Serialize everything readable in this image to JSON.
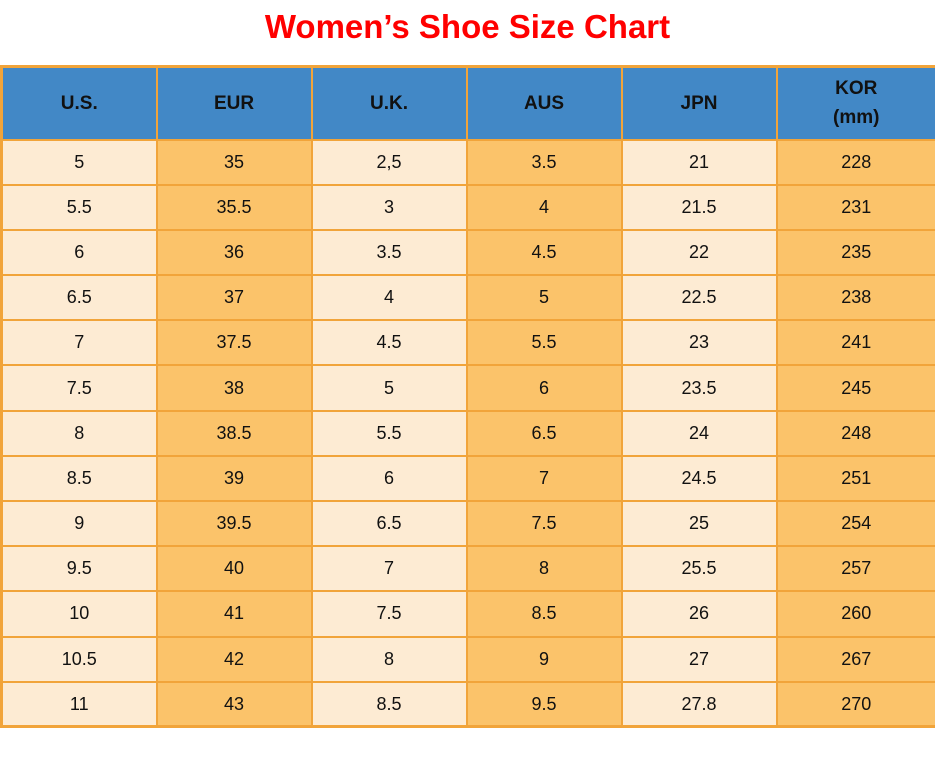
{
  "title": "Women’s Shoe Size Chart",
  "colors": {
    "title_red": "#ff0000",
    "header_blue": "#4288c6",
    "cell_cream": "#fdebd3",
    "cell_orange": "#fbc36a",
    "border_orange": "#f1a43a",
    "text_black": "#111111"
  },
  "chart_data": {
    "type": "table",
    "title": "Women’s Shoe Size Chart",
    "columns": [
      {
        "label": "U.S."
      },
      {
        "label": "EUR"
      },
      {
        "label": "U.K."
      },
      {
        "label": "AUS"
      },
      {
        "label": "JPN"
      },
      {
        "label": "KOR",
        "sublabel": "(mm)"
      }
    ],
    "rows": [
      [
        "5",
        "35",
        "2,5",
        "3.5",
        "21",
        "228"
      ],
      [
        "5.5",
        "35.5",
        "3",
        "4",
        "21.5",
        "231"
      ],
      [
        "6",
        "36",
        "3.5",
        "4.5",
        "22",
        "235"
      ],
      [
        "6.5",
        "37",
        "4",
        "5",
        "22.5",
        "238"
      ],
      [
        "7",
        "37.5",
        "4.5",
        "5.5",
        "23",
        "241"
      ],
      [
        "7.5",
        "38",
        "5",
        "6",
        "23.5",
        "245"
      ],
      [
        "8",
        "38.5",
        "5.5",
        "6.5",
        "24",
        "248"
      ],
      [
        "8.5",
        "39",
        "6",
        "7",
        "24.5",
        "251"
      ],
      [
        "9",
        "39.5",
        "6.5",
        "7.5",
        "25",
        "254"
      ],
      [
        "9.5",
        "40",
        "7",
        "8",
        "25.5",
        "257"
      ],
      [
        "10",
        "41",
        "7.5",
        "8.5",
        "26",
        "260"
      ],
      [
        "10.5",
        "42",
        "8",
        "9",
        "27",
        "267"
      ],
      [
        "11",
        "43",
        "8.5",
        "9.5",
        "27.8",
        "270"
      ]
    ]
  }
}
